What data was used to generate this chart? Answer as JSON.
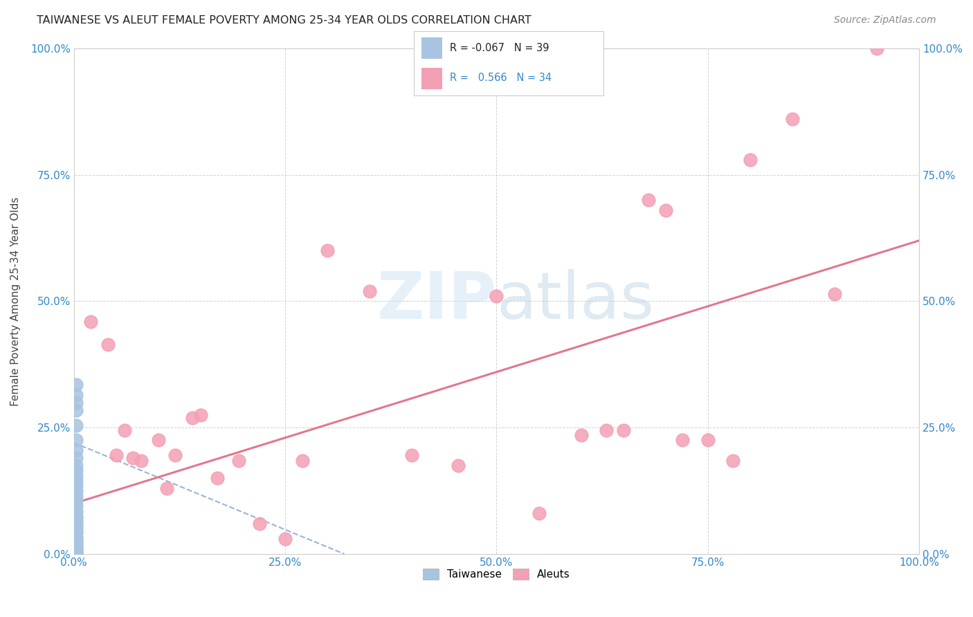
{
  "title": "TAIWANESE VS ALEUT FEMALE POVERTY AMONG 25-34 YEAR OLDS CORRELATION CHART",
  "source": "Source: ZipAtlas.com",
  "ylabel": "Female Poverty Among 25-34 Year Olds",
  "xlim": [
    0.0,
    1.0
  ],
  "ylim": [
    0.0,
    1.0
  ],
  "xticks": [
    0.0,
    0.25,
    0.5,
    0.75,
    1.0
  ],
  "yticks": [
    0.0,
    0.25,
    0.5,
    0.75,
    1.0
  ],
  "xticklabels": [
    "0.0%",
    "25.0%",
    "50.0%",
    "75.0%",
    "100.0%"
  ],
  "yticklabels": [
    "0.0%",
    "25.0%",
    "50.0%",
    "75.0%",
    "100.0%"
  ],
  "background_color": "#ffffff",
  "taiwanese_R": -0.067,
  "taiwanese_N": 39,
  "aleut_R": 0.566,
  "aleut_N": 34,
  "taiwanese_color": "#a8c4e0",
  "aleut_color": "#f4a0b4",
  "taiwanese_line_color": "#7799cc",
  "aleut_line_color": "#e06880",
  "taiwanese_x": [
    0.003,
    0.003,
    0.003,
    0.003,
    0.003,
    0.003,
    0.003,
    0.003,
    0.003,
    0.003,
    0.003,
    0.003,
    0.003,
    0.003,
    0.003,
    0.003,
    0.003,
    0.003,
    0.003,
    0.003,
    0.003,
    0.003,
    0.003,
    0.003,
    0.003,
    0.003,
    0.003,
    0.003,
    0.003,
    0.003,
    0.003,
    0.003,
    0.003,
    0.003,
    0.003,
    0.003,
    0.003,
    0.003,
    0.003
  ],
  "taiwanese_y": [
    0.335,
    0.315,
    0.3,
    0.285,
    0.255,
    0.225,
    0.205,
    0.19,
    0.175,
    0.165,
    0.155,
    0.145,
    0.135,
    0.125,
    0.115,
    0.105,
    0.095,
    0.085,
    0.075,
    0.072,
    0.065,
    0.062,
    0.055,
    0.052,
    0.045,
    0.042,
    0.033,
    0.03,
    0.025,
    0.022,
    0.02,
    0.015,
    0.012,
    0.01,
    0.007,
    0.005,
    0.003,
    0.001,
    0.0
  ],
  "aleut_x": [
    0.02,
    0.04,
    0.05,
    0.06,
    0.07,
    0.08,
    0.1,
    0.11,
    0.12,
    0.14,
    0.15,
    0.17,
    0.195,
    0.22,
    0.25,
    0.27,
    0.3,
    0.35,
    0.4,
    0.455,
    0.5,
    0.55,
    0.6,
    0.63,
    0.65,
    0.68,
    0.7,
    0.72,
    0.75,
    0.78,
    0.8,
    0.85,
    0.9,
    0.95
  ],
  "aleut_y": [
    0.46,
    0.415,
    0.195,
    0.245,
    0.19,
    0.185,
    0.225,
    0.13,
    0.195,
    0.27,
    0.275,
    0.15,
    0.185,
    0.06,
    0.03,
    0.185,
    0.6,
    0.52,
    0.195,
    0.175,
    0.51,
    0.08,
    0.235,
    0.245,
    0.245,
    0.7,
    0.68,
    0.225,
    0.225,
    0.185,
    0.78,
    0.86,
    0.515,
    1.0
  ],
  "tw_line_x0": 0.0,
  "tw_line_y0": 0.22,
  "tw_line_x1": 0.32,
  "tw_line_y1": 0.0,
  "al_line_x0": 0.0,
  "al_line_y0": 0.1,
  "al_line_x1": 1.0,
  "al_line_y1": 0.62
}
